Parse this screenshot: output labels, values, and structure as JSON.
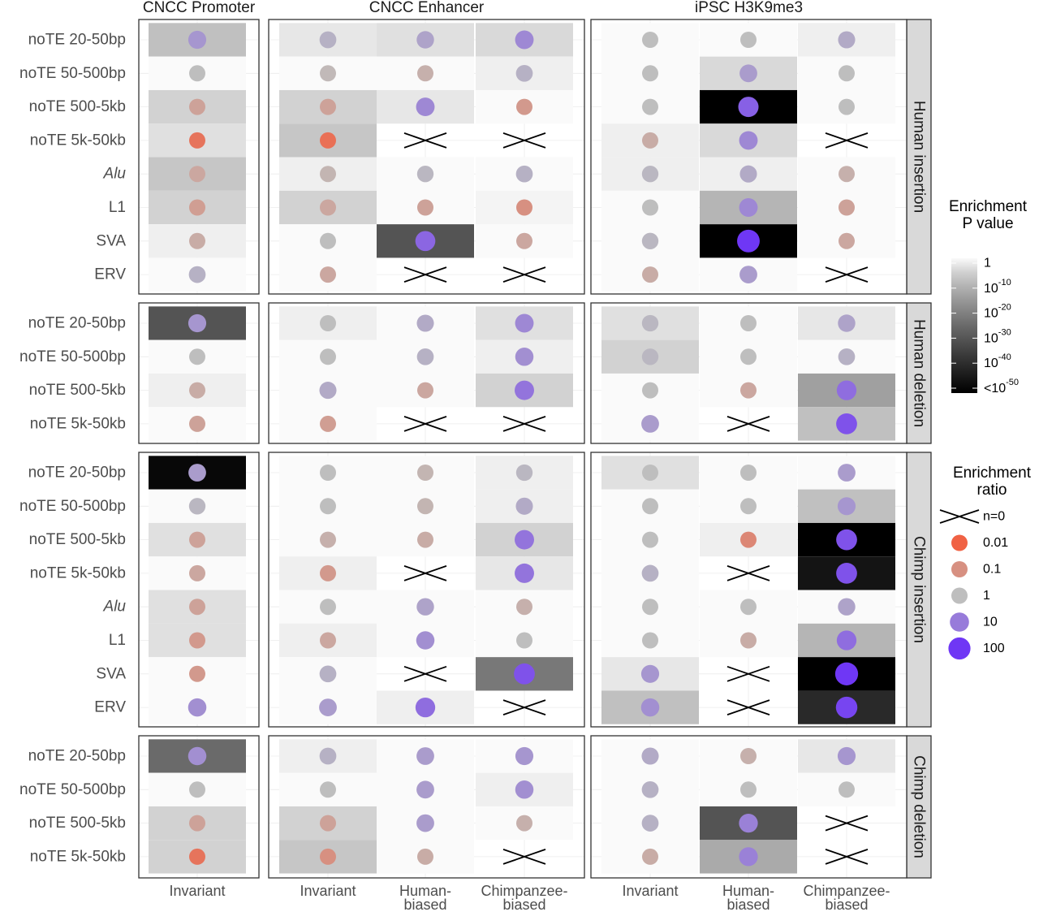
{
  "chart_data": {
    "type": "heatmap",
    "panels": [
      {
        "title": "CNCC Promoter",
        "columns": [
          "Invariant"
        ]
      },
      {
        "title": "CNCC Enhancer",
        "columns": [
          "Invariant",
          "Human-\nbiased",
          "Chimpanzee-\nbiased"
        ]
      },
      {
        "title": "iPSC H3K9me3",
        "columns": [
          "Invariant",
          "Human-\nbiased",
          "Chimpanzee-\nbiased"
        ]
      }
    ],
    "row_groups": [
      {
        "label": "Human insertion",
        "rows": [
          "noTE 20-50bp",
          "noTE 50-500bp",
          "noTE 500-5kb",
          "noTE 5k-50kb",
          "Alu",
          "L1",
          "SVA",
          "ERV"
        ]
      },
      {
        "label": "Human deletion",
        "rows": [
          "noTE 20-50bp",
          "noTE 50-500bp",
          "noTE 500-5kb",
          "noTE 5k-50kb"
        ]
      },
      {
        "label": "Chimp insertion",
        "rows": [
          "noTE 20-50bp",
          "noTE 50-500bp",
          "noTE 500-5kb",
          "noTE 5k-50kb",
          "Alu",
          "L1",
          "SVA",
          "ERV"
        ]
      },
      {
        "label": "Chimp deletion",
        "rows": [
          "noTE 20-50bp",
          "noTE 50-500bp",
          "noTE 500-5kb",
          "noTE 5k-50kb"
        ]
      }
    ],
    "italic_rows": [
      "Alu"
    ],
    "cell_value_legend": "each cell = [-log10 enrichment P value, log10 enrichment ratio]; null = n=0",
    "cells": [
      [
        [
          [
            8,
            0.6
          ]
        ],
        [
          [
            0,
            0
          ]
        ],
        [
          [
            5,
            -0.6
          ]
        ],
        [
          [
            3,
            -1.6
          ]
        ],
        [
          [
            7,
            -0.5
          ]
        ],
        [
          [
            5,
            -0.7
          ]
        ],
        [
          [
            1,
            -0.4
          ]
        ],
        [
          [
            0,
            0.2
          ]
        ]
      ],
      [
        [
          [
            2,
            0.2
          ],
          [
            3,
            0.4
          ],
          [
            4,
            0.8
          ]
        ],
        [
          [
            0,
            -0.1
          ],
          [
            0,
            -0.3
          ],
          [
            1,
            0.2
          ]
        ],
        [
          [
            5,
            -0.6
          ],
          [
            2,
            0.8
          ],
          [
            0,
            -0.8
          ]
        ],
        [
          [
            7,
            -1.7
          ],
          null,
          null
        ],
        [
          [
            1,
            -0.2
          ],
          [
            0,
            0.1
          ],
          [
            0,
            0.2
          ]
        ],
        [
          [
            5,
            -0.5
          ],
          [
            0,
            -0.6
          ],
          [
            0.5,
            -1.0
          ]
        ],
        [
          [
            0,
            0
          ],
          [
            30,
            1.3
          ],
          [
            0,
            -0.5
          ]
        ],
        [
          [
            0,
            -0.5
          ],
          null,
          null
        ]
      ],
      [
        [
          [
            0,
            0
          ],
          [
            0,
            0
          ],
          [
            1,
            0.3
          ]
        ],
        [
          [
            0,
            0
          ],
          [
            4,
            0.5
          ],
          [
            0,
            0
          ]
        ],
        [
          [
            0,
            0
          ],
          [
            55,
            1.4
          ],
          [
            0,
            0
          ]
        ],
        [
          [
            1,
            -0.4
          ],
          [
            4,
            0.8
          ],
          null
        ],
        [
          [
            1,
            0.1
          ],
          [
            1,
            0.3
          ],
          [
            0,
            -0.3
          ]
        ],
        [
          [
            0,
            0
          ],
          [
            10,
            0.8
          ],
          [
            0,
            -0.6
          ]
        ],
        [
          [
            0,
            0.1
          ],
          [
            55,
            2.2
          ],
          [
            0,
            -0.5
          ]
        ],
        [
          [
            0,
            -0.4
          ],
          [
            0,
            0.5
          ],
          null
        ]
      ],
      [
        [
          [
            30,
            0.6
          ]
        ],
        [
          [
            0,
            0
          ]
        ],
        [
          [
            1,
            -0.4
          ]
        ],
        [
          [
            0,
            -0.6
          ]
        ]
      ],
      [
        [
          [
            1,
            0
          ],
          [
            0,
            0.3
          ],
          [
            3,
            0.8
          ]
        ],
        [
          [
            0,
            0
          ],
          [
            0,
            0.2
          ],
          [
            1,
            0.7
          ]
        ],
        [
          [
            0,
            0.3
          ],
          [
            0,
            -0.5
          ],
          [
            5,
            1.1
          ]
        ],
        [
          [
            0,
            -0.7
          ],
          null,
          null
        ]
      ],
      [
        [
          [
            3,
            0.1
          ],
          [
            0,
            0
          ],
          [
            2,
            0.4
          ]
        ],
        [
          [
            5,
            0.1
          ],
          [
            0,
            0
          ],
          [
            0,
            0.2
          ]
        ],
        [
          [
            0,
            0
          ],
          [
            0,
            -0.5
          ],
          [
            14,
            1.2
          ]
        ],
        [
          [
            0,
            0.5
          ],
          null,
          [
            8,
            1.6
          ]
        ]
      ],
      [
        [
          [
            48,
            0.5
          ]
        ],
        [
          [
            0,
            0.1
          ]
        ],
        [
          [
            3,
            -0.6
          ]
        ],
        [
          [
            0,
            -0.5
          ]
        ],
        [
          [
            3,
            -0.6
          ]
        ],
        [
          [
            3,
            -0.8
          ]
        ],
        [
          [
            0,
            -0.8
          ]
        ],
        [
          [
            0,
            0.7
          ]
        ]
      ],
      [
        [
          [
            0,
            0
          ],
          [
            0,
            -0.2
          ],
          [
            1,
            0.1
          ]
        ],
        [
          [
            0,
            0
          ],
          [
            0,
            -0.2
          ],
          [
            1,
            0.3
          ]
        ],
        [
          [
            0,
            -0.3
          ],
          [
            0,
            -0.4
          ],
          [
            5,
            1.1
          ]
        ],
        [
          [
            1,
            -0.8
          ],
          null,
          [
            2,
            1.1
          ]
        ],
        [
          [
            0,
            0
          ],
          [
            0,
            0.4
          ],
          [
            0,
            -0.3
          ]
        ],
        [
          [
            1,
            -0.5
          ],
          [
            0,
            0.7
          ],
          [
            0,
            0
          ]
        ],
        [
          [
            0,
            0.2
          ],
          null,
          [
            22,
            1.6
          ]
        ],
        [
          [
            0,
            0.5
          ],
          [
            1,
            1.2
          ],
          null
        ]
      ],
      [
        [
          [
            3,
            0
          ],
          [
            0,
            0
          ],
          [
            0,
            0.5
          ]
        ],
        [
          [
            0,
            0
          ],
          [
            0,
            0
          ],
          [
            8,
            0.6
          ]
        ],
        [
          [
            0,
            0
          ],
          [
            1,
            -1.2
          ],
          [
            55,
            1.6
          ]
        ],
        [
          [
            0,
            0.2
          ],
          null,
          [
            45,
            1.6
          ]
        ],
        [
          [
            0,
            0
          ],
          [
            0,
            0
          ],
          [
            0,
            0.4
          ]
        ],
        [
          [
            0,
            0
          ],
          [
            0,
            -0.4
          ],
          [
            10,
            1.2
          ]
        ],
        [
          [
            2,
            0.6
          ],
          null,
          [
            55,
            2.3
          ]
        ],
        [
          [
            8,
            0.7
          ],
          null,
          [
            40,
            1.8
          ]
        ]
      ],
      [
        [
          [
            25,
            0.7
          ]
        ],
        [
          [
            0,
            0
          ]
        ],
        [
          [
            5,
            -0.6
          ]
        ],
        [
          [
            5,
            -1.6
          ]
        ]
      ],
      [
        [
          [
            1,
            0.2
          ],
          [
            0,
            0.5
          ],
          [
            0,
            0.6
          ]
        ],
        [
          [
            0,
            0
          ],
          [
            0,
            0.5
          ],
          [
            1,
            0.7
          ]
        ],
        [
          [
            5,
            -0.6
          ],
          [
            0,
            0.5
          ],
          [
            0,
            -0.3
          ]
        ],
        [
          [
            7,
            -1.0
          ],
          [
            0,
            -0.4
          ],
          null
        ]
      ],
      [
        [
          [
            0,
            0.3
          ],
          [
            0,
            -0.3
          ],
          [
            2,
            0.6
          ]
        ],
        [
          [
            0,
            0.2
          ],
          [
            0,
            0
          ],
          [
            0,
            0
          ]
        ],
        [
          [
            0,
            0.2
          ],
          [
            30,
            0.9
          ],
          null
        ],
        [
          [
            0,
            -0.4
          ],
          [
            12,
            0.9
          ],
          null
        ]
      ]
    ],
    "legend_pvalue": {
      "title": [
        "Enrichment",
        "P value"
      ],
      "ticks": [
        "1",
        "10^-10",
        "10^-20",
        "10^-30",
        "10^-40",
        "<10^-50"
      ],
      "domain": [
        0,
        50
      ]
    },
    "legend_ratio": {
      "title": [
        "Enrichment",
        "ratio"
      ],
      "entries": [
        "n=0",
        "0.01",
        "0.1",
        "1",
        "10",
        "100"
      ],
      "values": [
        null,
        -2,
        -1,
        0,
        1,
        2
      ]
    },
    "colors": {
      "low_ratio": "#f06244",
      "mid_ratio": "#bebebe",
      "high_ratio": "#6f37f5",
      "p_high": "#fafafa",
      "p_low": "#000000",
      "panel_border": "#333333",
      "strip_fill": "#d9d9d9"
    }
  }
}
